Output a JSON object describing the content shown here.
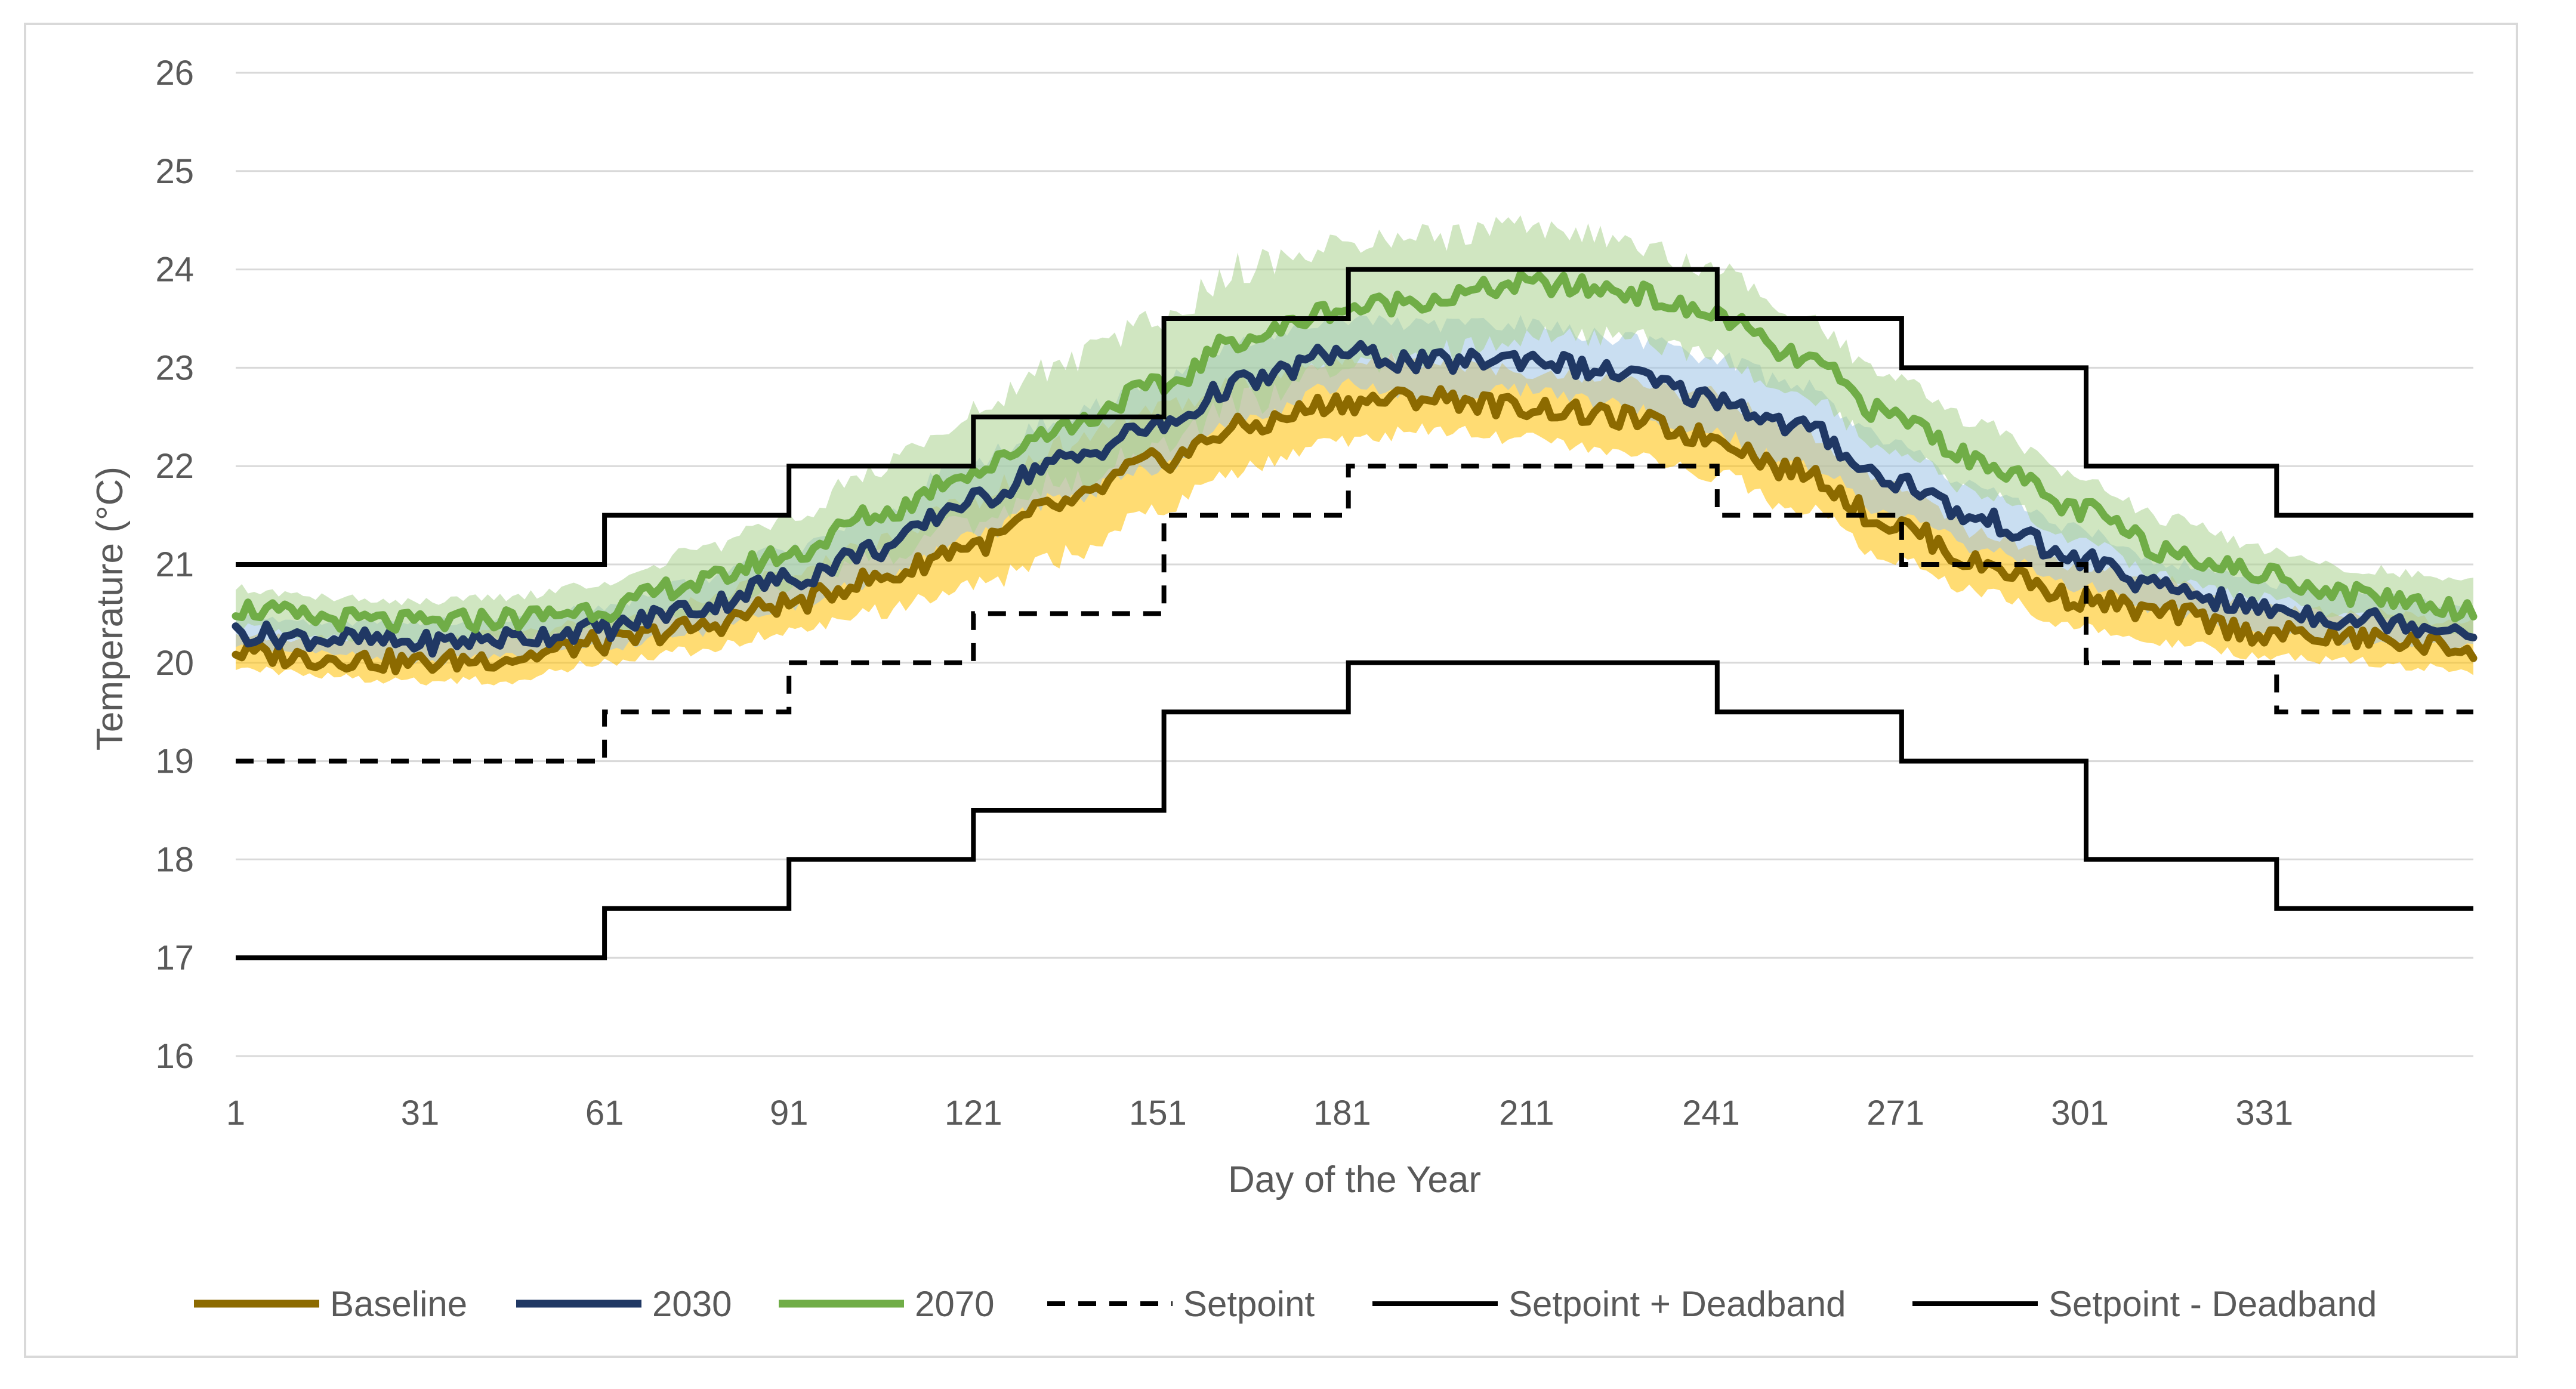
{
  "chart_data": {
    "type": "line",
    "title": "",
    "xlabel": "Day of the Year",
    "ylabel": "Temperature (°C)",
    "xlim": [
      1,
      365
    ],
    "ylim": [
      16,
      26
    ],
    "x_ticks": [
      1,
      31,
      61,
      91,
      121,
      151,
      181,
      211,
      241,
      271,
      301,
      331
    ],
    "y_ticks": [
      16,
      17,
      18,
      19,
      20,
      21,
      22,
      23,
      24,
      25,
      26
    ],
    "grid": "horizontal",
    "legend_position": "bottom",
    "series": [
      {
        "name": "Baseline",
        "color": "#8C6A00",
        "band_color": "#FFC000",
        "style": "thick-solid",
        "points": [
          [
            1,
            20.1
          ],
          [
            15,
            20.05
          ],
          [
            31,
            20.0
          ],
          [
            45,
            20.05
          ],
          [
            61,
            20.2
          ],
          [
            75,
            20.35
          ],
          [
            91,
            20.6
          ],
          [
            105,
            20.85
          ],
          [
            121,
            21.2
          ],
          [
            135,
            21.6
          ],
          [
            151,
            22.05
          ],
          [
            165,
            22.4
          ],
          [
            181,
            22.65
          ],
          [
            195,
            22.7
          ],
          [
            211,
            22.6
          ],
          [
            225,
            22.5
          ],
          [
            241,
            22.3
          ],
          [
            255,
            21.95
          ],
          [
            271,
            21.4
          ],
          [
            285,
            21.0
          ],
          [
            301,
            20.65
          ],
          [
            315,
            20.5
          ],
          [
            331,
            20.3
          ],
          [
            345,
            20.25
          ],
          [
            365,
            20.15
          ]
        ],
        "band_half_width": [
          0.15,
          0.2,
          0.2,
          0.25,
          0.2,
          0.25,
          0.3,
          0.35,
          0.45,
          0.55,
          0.5,
          0.45,
          0.4,
          0.35,
          0.35,
          0.35,
          0.4,
          0.4,
          0.35,
          0.3,
          0.3,
          0.3,
          0.25,
          0.25,
          0.25
        ]
      },
      {
        "name": "2030",
        "color": "#203864",
        "band_color": "#9DC3E6",
        "style": "thick-solid",
        "points": [
          [
            1,
            20.3
          ],
          [
            15,
            20.25
          ],
          [
            31,
            20.2
          ],
          [
            45,
            20.25
          ],
          [
            61,
            20.35
          ],
          [
            75,
            20.55
          ],
          [
            91,
            20.85
          ],
          [
            105,
            21.15
          ],
          [
            121,
            21.65
          ],
          [
            135,
            22.05
          ],
          [
            151,
            22.4
          ],
          [
            165,
            22.85
          ],
          [
            181,
            23.15
          ],
          [
            195,
            23.05
          ],
          [
            211,
            23.1
          ],
          [
            225,
            22.95
          ],
          [
            241,
            22.7
          ],
          [
            255,
            22.4
          ],
          [
            271,
            21.85
          ],
          [
            285,
            21.45
          ],
          [
            301,
            21.05
          ],
          [
            315,
            20.75
          ],
          [
            331,
            20.55
          ],
          [
            345,
            20.45
          ],
          [
            365,
            20.35
          ]
        ],
        "band_half_width": [
          0.15,
          0.15,
          0.2,
          0.2,
          0.2,
          0.25,
          0.3,
          0.35,
          0.4,
          0.4,
          0.45,
          0.4,
          0.35,
          0.35,
          0.35,
          0.35,
          0.4,
          0.4,
          0.35,
          0.3,
          0.3,
          0.25,
          0.25,
          0.25,
          0.2
        ]
      },
      {
        "name": "2070",
        "color": "#70AD47",
        "band_color": "#A9D18E",
        "style": "thick-solid",
        "points": [
          [
            1,
            20.55
          ],
          [
            15,
            20.45
          ],
          [
            31,
            20.4
          ],
          [
            45,
            20.45
          ],
          [
            61,
            20.55
          ],
          [
            75,
            20.8
          ],
          [
            91,
            21.1
          ],
          [
            105,
            21.5
          ],
          [
            121,
            21.95
          ],
          [
            135,
            22.4
          ],
          [
            151,
            22.8
          ],
          [
            165,
            23.3
          ],
          [
            181,
            23.6
          ],
          [
            195,
            23.7
          ],
          [
            211,
            23.85
          ],
          [
            225,
            23.8
          ],
          [
            241,
            23.55
          ],
          [
            255,
            23.1
          ],
          [
            271,
            22.5
          ],
          [
            285,
            22.05
          ],
          [
            301,
            21.55
          ],
          [
            315,
            21.15
          ],
          [
            331,
            20.9
          ],
          [
            345,
            20.7
          ],
          [
            365,
            20.55
          ]
        ],
        "band_half_width": [
          0.2,
          0.2,
          0.2,
          0.2,
          0.25,
          0.3,
          0.35,
          0.45,
          0.55,
          0.6,
          0.65,
          0.7,
          0.6,
          0.6,
          0.55,
          0.5,
          0.45,
          0.4,
          0.35,
          0.35,
          0.3,
          0.3,
          0.25,
          0.25,
          0.25
        ]
      },
      {
        "name": "Setpoint",
        "color": "#000000",
        "style": "dashed-step",
        "steps": [
          [
            1,
            19.0
          ],
          [
            61,
            19.5
          ],
          [
            91,
            20.0
          ],
          [
            121,
            20.5
          ],
          [
            152,
            21.5
          ],
          [
            182,
            22.0
          ],
          [
            242,
            21.5
          ],
          [
            272,
            21.0
          ],
          [
            302,
            20.0
          ],
          [
            333,
            19.5
          ],
          [
            365,
            19.5
          ]
        ]
      },
      {
        "name": "Setpoint + Deadband",
        "color": "#000000",
        "style": "solid-step",
        "steps": [
          [
            1,
            21.0
          ],
          [
            61,
            21.5
          ],
          [
            91,
            22.0
          ],
          [
            121,
            22.5
          ],
          [
            152,
            23.5
          ],
          [
            182,
            24.0
          ],
          [
            242,
            23.5
          ],
          [
            272,
            23.0
          ],
          [
            302,
            22.0
          ],
          [
            333,
            21.5
          ],
          [
            365,
            21.5
          ]
        ]
      },
      {
        "name": "Setpoint - Deadband",
        "color": "#000000",
        "style": "solid-step",
        "steps": [
          [
            1,
            17.0
          ],
          [
            61,
            17.5
          ],
          [
            91,
            18.0
          ],
          [
            121,
            18.5
          ],
          [
            152,
            19.5
          ],
          [
            182,
            20.0
          ],
          [
            242,
            19.5
          ],
          [
            272,
            19.0
          ],
          [
            302,
            18.0
          ],
          [
            333,
            17.5
          ],
          [
            365,
            17.5
          ]
        ]
      }
    ]
  }
}
